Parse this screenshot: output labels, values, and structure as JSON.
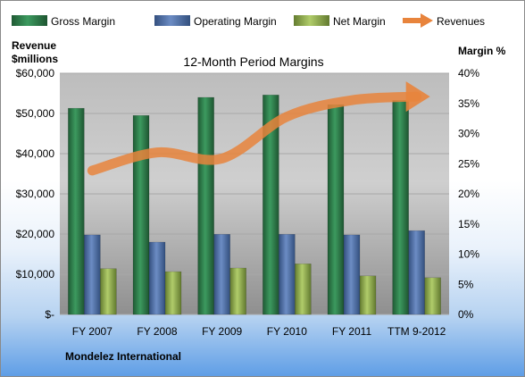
{
  "chart_data": {
    "type": "bar",
    "title": "12-Month Period Margins",
    "company": "Mondelez International",
    "left_axis_label": [
      "Revenue",
      "$millions"
    ],
    "right_axis_label": "Margin %",
    "categories": [
      "FY 2007",
      "FY 2008",
      "FY 2009",
      "FY 2010",
      "FY 2011",
      "TTM 9-2012"
    ],
    "left_ticks": [
      "$-",
      "$10,000",
      "$20,000",
      "$30,000",
      "$40,000",
      "$50,000",
      "$60,000"
    ],
    "right_ticks": [
      "0%",
      "5%",
      "10%",
      "15%",
      "20%",
      "25%",
      "30%",
      "35%",
      "40%"
    ],
    "ylim_right": [
      0,
      40
    ],
    "ylim_left": [
      0,
      60000
    ],
    "series": [
      {
        "name": "Gross Margin",
        "color": "#2e7d4a",
        "values": [
          34.2,
          33.0,
          36.0,
          36.4,
          34.8,
          35.5
        ]
      },
      {
        "name": "Operating Margin",
        "color": "#4f6fa8",
        "values": [
          13.2,
          12.0,
          13.3,
          13.3,
          13.2,
          13.9
        ]
      },
      {
        "name": "Net Margin",
        "color": "#8fb04a",
        "values": [
          7.6,
          7.1,
          7.7,
          8.4,
          6.4,
          6.1
        ]
      },
      {
        "name": "Revenues",
        "color": "#e8843c",
        "type": "line",
        "values": [
          35800,
          40300,
          38800,
          49200,
          53300,
          54200
        ]
      }
    ]
  }
}
